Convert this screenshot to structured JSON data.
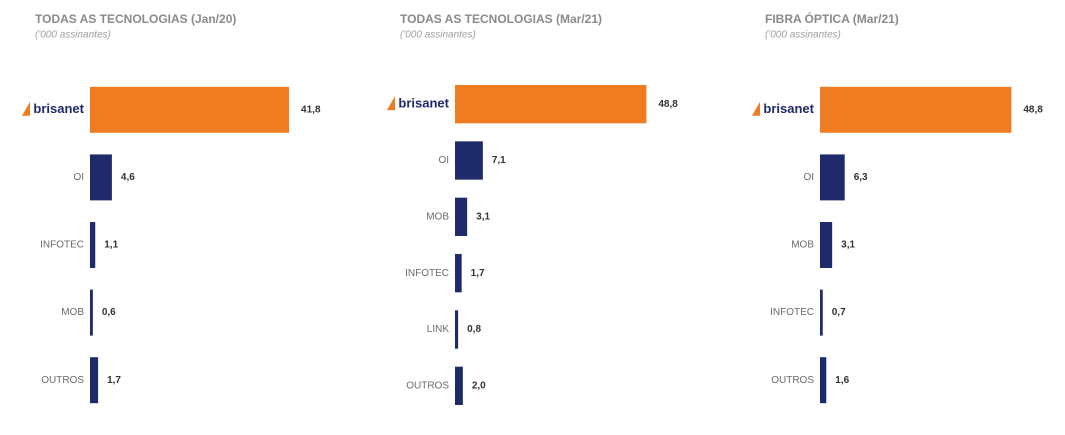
{
  "chart_data": [
    {
      "type": "bar",
      "orientation": "horizontal",
      "title": "TODAS AS TECNOLOGIAS (Jan/20)",
      "subtitle": "('000 assinantes)",
      "categories": [
        "brisanet",
        "OI",
        "INFOTEC",
        "MOB",
        "OUTROS"
      ],
      "values": [
        41.8,
        4.6,
        1.1,
        0.6,
        1.7
      ],
      "value_labels": [
        "41,8",
        "4,6",
        "1,1",
        "0,6",
        "1,7"
      ],
      "colors": [
        "#f07c22",
        "#1f2a6b",
        "#1f2a6b",
        "#1f2a6b",
        "#1f2a6b"
      ],
      "xlim": [
        0,
        42
      ]
    },
    {
      "type": "bar",
      "orientation": "horizontal",
      "title": "TODAS AS TECNOLOGIAS (Mar/21)",
      "subtitle": "('000 assinantes)",
      "categories": [
        "brisanet",
        "OI",
        "MOB",
        "INFOTEC",
        "LINK",
        "OUTROS"
      ],
      "values": [
        48.8,
        7.1,
        3.1,
        1.7,
        0.8,
        2.0
      ],
      "value_labels": [
        "48,8",
        "7,1",
        "3,1",
        "1,7",
        "0,8",
        "2,0"
      ],
      "colors": [
        "#f07c22",
        "#1f2a6b",
        "#1f2a6b",
        "#1f2a6b",
        "#1f2a6b",
        "#1f2a6b"
      ],
      "xlim": [
        0,
        51
      ]
    },
    {
      "type": "bar",
      "orientation": "horizontal",
      "title": "FIBRA ÓPTICA (Mar/21)",
      "subtitle": "('000 assinantes)",
      "categories": [
        "brisanet",
        "OI",
        "MOB",
        "INFOTEC",
        "OUTROS"
      ],
      "values": [
        48.8,
        6.3,
        3.1,
        0.7,
        1.6
      ],
      "value_labels": [
        "48,8",
        "6,3",
        "3,1",
        "0,7",
        "1,6"
      ],
      "colors": [
        "#f07c22",
        "#1f2a6b",
        "#1f2a6b",
        "#1f2a6b",
        "#1f2a6b"
      ],
      "xlim": [
        0,
        51
      ]
    }
  ]
}
